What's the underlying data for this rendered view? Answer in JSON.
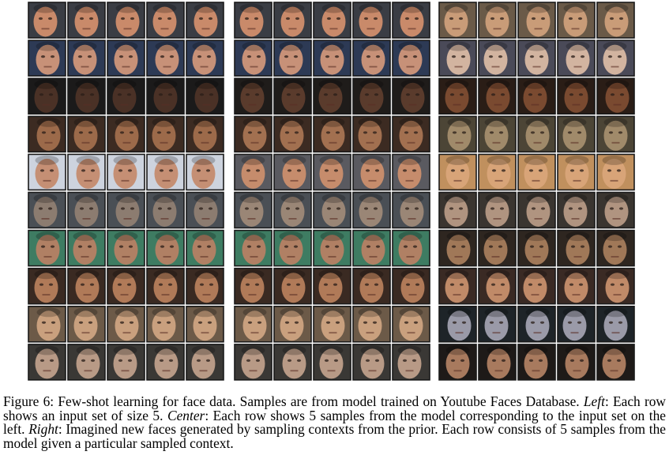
{
  "figure": {
    "panels": [
      {
        "id": "left",
        "role": "input set",
        "rows": 10,
        "cols": 5
      },
      {
        "id": "center",
        "role": "model samples",
        "rows": 10,
        "cols": 5
      },
      {
        "id": "right",
        "role": "imagined samples",
        "rows": 10,
        "cols": 5
      }
    ],
    "row_palettes": {
      "left": [
        [
          "#c98a6a",
          "#3a3d44"
        ],
        [
          "#c79178",
          "#2d3a55"
        ],
        [
          "#4a3126",
          "#1b1a1a"
        ],
        [
          "#9c6a4a",
          "#3c2b22"
        ],
        [
          "#c58f74",
          "#cdd3de"
        ],
        [
          "#8c7c70",
          "#4a4f55"
        ],
        [
          "#b08064",
          "#3e7c62"
        ],
        [
          "#b07a58",
          "#3a2a22"
        ],
        [
          "#c9a07e",
          "#6c5a48"
        ],
        [
          "#b89a86",
          "#3a3835"
        ]
      ],
      "center": [
        [
          "#c98a6a",
          "#3a3d44"
        ],
        [
          "#c79178",
          "#2d3a55"
        ],
        [
          "#5a3b2c",
          "#1f1c1a"
        ],
        [
          "#a27050",
          "#3c2b22"
        ],
        [
          "#c68c6c",
          "#5a5a60"
        ],
        [
          "#9a8676",
          "#4a4f55"
        ],
        [
          "#b08064",
          "#3e7c62"
        ],
        [
          "#b07a58",
          "#3a2a22"
        ],
        [
          "#c9a07e",
          "#6c5a48"
        ],
        [
          "#b89a86",
          "#3a3835"
        ]
      ],
      "right": [
        [
          "#c99c78",
          "#6a5a48"
        ],
        [
          "#d2b4a0",
          "#4a4a58"
        ],
        [
          "#7a4a30",
          "#2a1d16"
        ],
        [
          "#a08a6a",
          "#4c4536"
        ],
        [
          "#d8a478",
          "#c0905e"
        ],
        [
          "#b09480",
          "#3a3530"
        ],
        [
          "#a07858",
          "#2e2620"
        ],
        [
          "#c08a68",
          "#3a2a24"
        ],
        [
          "#9a9aa8",
          "#1e2428"
        ],
        [
          "#a87a5e",
          "#1e1a18"
        ]
      ]
    }
  },
  "caption": {
    "fig_label": "Figure 6:",
    "text_main": " Few-shot learning for face data.  Samples are from model trained on Youtube Faces Database. ",
    "left_label": "Left",
    "left_text": ": Each row shows an input set of size 5. ",
    "center_label": "Center",
    "center_text": ": Each row shows 5 samples from the model corresponding to the input set on the left. ",
    "right_label": "Right",
    "right_text": ": Imagined new faces generated by sampling contexts from the prior. Each row consists of 5 samples from the model given a particular sampled context."
  }
}
